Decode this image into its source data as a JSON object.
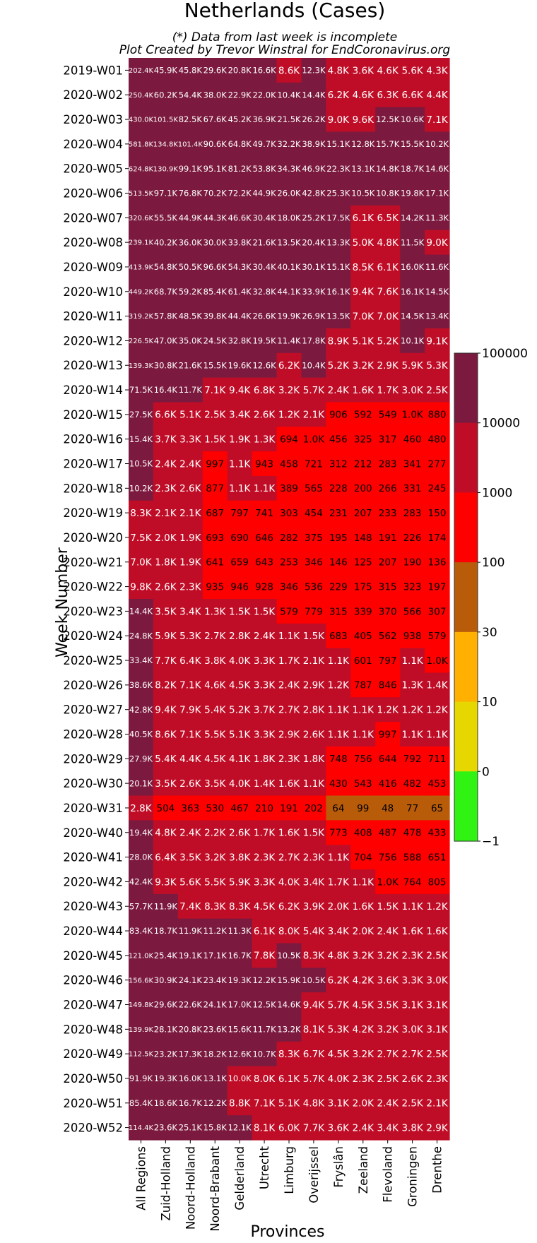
{
  "chart_data": {
    "type": "heatmap",
    "title": "Netherlands (Cases)",
    "subtitle_lines": [
      "(*) Data from last week is incomplete",
      "Plot Created by Trevor Winstral for EndCoronavirus.org"
    ],
    "xlabel": "Provinces",
    "ylabel": "Week Number",
    "columns": [
      "All Regions",
      "Zuid-Holland",
      "Noord-Holland",
      "Noord-Brabant",
      "Gelderland",
      "Utrecht",
      "Limburg",
      "Overijssel",
      "Fryslân",
      "Zeeland",
      "Flevoland",
      "Groningen",
      "Drenthe"
    ],
    "rows": [
      "2019-W01",
      "2020-W02",
      "2020-W03",
      "2020-W04",
      "2020-W05",
      "2020-W06",
      "2020-W07",
      "2020-W08",
      "2020-W09",
      "2020-W10",
      "2020-W11",
      "2020-W12",
      "2020-W13",
      "2020-W14",
      "2020-W15",
      "2020-W16",
      "2020-W17",
      "2020-W18",
      "2020-W19",
      "2020-W20",
      "2020-W21",
      "2020-W22",
      "2020-W23",
      "2020-W24",
      "2020-W25",
      "2020-W26",
      "2020-W27",
      "2020-W28",
      "2020-W29",
      "2020-W30",
      "2020-W31",
      "2020-W40",
      "2020-W41",
      "2020-W42",
      "2020-W43",
      "2020-W44",
      "2020-W45",
      "2020-W46",
      "2020-W47",
      "2020-W48",
      "2020-W49",
      "2020-W50",
      "2020-W51",
      "2020-W52"
    ],
    "cells": [
      [
        "202.4K",
        "45.9K",
        "45.8K",
        "29.6K",
        "20.8K",
        "16.6K",
        "8.6K",
        "12.3K",
        "4.8K",
        "3.6K",
        "4.6K",
        "5.6K",
        "4.3K"
      ],
      [
        "250.4K",
        "60.2K",
        "54.4K",
        "38.0K",
        "22.9K",
        "22.0K",
        "10.4K",
        "14.4K",
        "6.2K",
        "4.6K",
        "6.3K",
        "6.6K",
        "4.4K"
      ],
      [
        "430.0K",
        "101.5K",
        "82.5K",
        "67.6K",
        "45.2K",
        "36.9K",
        "21.5K",
        "26.2K",
        "9.0K",
        "9.6K",
        "12.5K",
        "10.6K",
        "7.1K"
      ],
      [
        "581.8K",
        "134.8K",
        "101.4K",
        "90.6K",
        "64.8K",
        "49.7K",
        "32.2K",
        "38.9K",
        "15.1K",
        "12.8K",
        "15.7K",
        "15.5K",
        "10.2K"
      ],
      [
        "624.8K",
        "130.9K",
        "99.1K",
        "95.1K",
        "81.2K",
        "53.8K",
        "34.3K",
        "46.9K",
        "22.3K",
        "13.1K",
        "14.8K",
        "18.7K",
        "14.6K"
      ],
      [
        "513.5K",
        "97.1K",
        "76.8K",
        "70.2K",
        "72.2K",
        "44.9K",
        "26.0K",
        "42.8K",
        "25.3K",
        "10.5K",
        "10.8K",
        "19.8K",
        "17.1K"
      ],
      [
        "320.6K",
        "55.5K",
        "44.9K",
        "44.3K",
        "46.6K",
        "30.4K",
        "18.0K",
        "25.2K",
        "17.5K",
        "6.1K",
        "6.5K",
        "14.2K",
        "11.3K"
      ],
      [
        "239.1K",
        "40.2K",
        "36.0K",
        "30.0K",
        "33.8K",
        "21.6K",
        "13.5K",
        "20.4K",
        "13.3K",
        "5.0K",
        "4.8K",
        "11.5K",
        "9.0K"
      ],
      [
        "413.9K",
        "54.8K",
        "50.5K",
        "96.6K",
        "54.3K",
        "30.4K",
        "40.1K",
        "30.1K",
        "15.1K",
        "8.5K",
        "6.1K",
        "16.0K",
        "11.6K"
      ],
      [
        "449.2K",
        "68.7K",
        "59.2K",
        "85.4K",
        "61.4K",
        "32.8K",
        "44.1K",
        "33.9K",
        "16.1K",
        "9.4K",
        "7.6K",
        "16.1K",
        "14.5K"
      ],
      [
        "319.2K",
        "57.8K",
        "48.5K",
        "39.8K",
        "44.4K",
        "26.6K",
        "19.9K",
        "26.9K",
        "13.5K",
        "7.0K",
        "7.0K",
        "14.5K",
        "13.4K"
      ],
      [
        "226.5K",
        "47.0K",
        "35.0K",
        "24.5K",
        "32.8K",
        "19.5K",
        "11.4K",
        "17.8K",
        "8.9K",
        "5.1K",
        "5.2K",
        "10.1K",
        "9.1K"
      ],
      [
        "139.3K",
        "30.8K",
        "21.6K",
        "15.5K",
        "19.6K",
        "12.6K",
        "6.2K",
        "10.4K",
        "5.2K",
        "3.2K",
        "2.9K",
        "5.9K",
        "5.3K"
      ],
      [
        "71.5K",
        "16.4K",
        "11.7K",
        "7.1K",
        "9.4K",
        "6.8K",
        "3.2K",
        "5.7K",
        "2.4K",
        "1.6K",
        "1.7K",
        "3.0K",
        "2.5K"
      ],
      [
        "27.5K",
        "6.6K",
        "5.1K",
        "2.5K",
        "3.4K",
        "2.6K",
        "1.2K",
        "2.1K",
        "906",
        "592",
        "549",
        "1.0K",
        "880"
      ],
      [
        "15.4K",
        "3.7K",
        "3.3K",
        "1.5K",
        "1.9K",
        "1.3K",
        "694",
        "1.0K",
        "456",
        "325",
        "317",
        "460",
        "480"
      ],
      [
        "10.5K",
        "2.4K",
        "2.4K",
        "997",
        "1.1K",
        "943",
        "458",
        "721",
        "312",
        "212",
        "283",
        "341",
        "277"
      ],
      [
        "10.2K",
        "2.3K",
        "2.6K",
        "877",
        "1.1K",
        "1.1K",
        "389",
        "565",
        "228",
        "200",
        "266",
        "331",
        "245"
      ],
      [
        "8.3K",
        "2.1K",
        "2.1K",
        "687",
        "797",
        "741",
        "303",
        "454",
        "231",
        "207",
        "233",
        "283",
        "150"
      ],
      [
        "7.5K",
        "2.0K",
        "1.9K",
        "693",
        "690",
        "646",
        "282",
        "375",
        "195",
        "148",
        "191",
        "226",
        "174"
      ],
      [
        "7.0K",
        "1.8K",
        "1.9K",
        "641",
        "659",
        "643",
        "253",
        "346",
        "146",
        "125",
        "207",
        "190",
        "136"
      ],
      [
        "9.8K",
        "2.6K",
        "2.3K",
        "935",
        "946",
        "928",
        "346",
        "536",
        "229",
        "175",
        "315",
        "323",
        "197"
      ],
      [
        "14.4K",
        "3.5K",
        "3.4K",
        "1.3K",
        "1.5K",
        "1.5K",
        "579",
        "779",
        "315",
        "339",
        "370",
        "566",
        "307"
      ],
      [
        "24.8K",
        "5.9K",
        "5.3K",
        "2.7K",
        "2.8K",
        "2.4K",
        "1.1K",
        "1.5K",
        "683",
        "405",
        "562",
        "938",
        "579"
      ],
      [
        "33.4K",
        "7.7K",
        "6.4K",
        "3.8K",
        "4.0K",
        "3.3K",
        "1.7K",
        "2.1K",
        "1.1K",
        "601",
        "797",
        "1.1K",
        "1.0K"
      ],
      [
        "38.6K",
        "8.2K",
        "7.1K",
        "4.6K",
        "4.5K",
        "3.3K",
        "2.4K",
        "2.9K",
        "1.2K",
        "787",
        "846",
        "1.3K",
        "1.4K"
      ],
      [
        "42.8K",
        "9.4K",
        "7.9K",
        "5.4K",
        "5.2K",
        "3.7K",
        "2.7K",
        "2.8K",
        "1.1K",
        "1.1K",
        "1.2K",
        "1.2K",
        "1.2K"
      ],
      [
        "40.5K",
        "8.6K",
        "7.1K",
        "5.5K",
        "5.1K",
        "3.3K",
        "2.9K",
        "2.6K",
        "1.1K",
        "1.1K",
        "997",
        "1.1K",
        "1.1K"
      ],
      [
        "27.9K",
        "5.4K",
        "4.4K",
        "4.5K",
        "4.1K",
        "1.8K",
        "2.3K",
        "1.8K",
        "748",
        "756",
        "644",
        "792",
        "711"
      ],
      [
        "20.1K",
        "3.5K",
        "2.6K",
        "3.5K",
        "4.0K",
        "1.4K",
        "1.6K",
        "1.1K",
        "430",
        "543",
        "416",
        "482",
        "453"
      ],
      [
        "2.8K",
        "504",
        "363",
        "530",
        "467",
        "210",
        "191",
        "202",
        "64",
        "99",
        "48",
        "77",
        "65"
      ],
      [
        "19.4K",
        "4.8K",
        "2.4K",
        "2.2K",
        "2.6K",
        "1.7K",
        "1.6K",
        "1.5K",
        "773",
        "408",
        "487",
        "478",
        "433"
      ],
      [
        "28.0K",
        "6.4K",
        "3.5K",
        "3.2K",
        "3.8K",
        "2.3K",
        "2.7K",
        "2.3K",
        "1.1K",
        "704",
        "756",
        "588",
        "651"
      ],
      [
        "42.4K",
        "9.3K",
        "5.6K",
        "5.5K",
        "5.9K",
        "3.3K",
        "4.0K",
        "3.4K",
        "1.7K",
        "1.1K",
        "1.0K",
        "764",
        "805"
      ],
      [
        "57.7K",
        "11.9K",
        "7.4K",
        "8.3K",
        "8.3K",
        "4.5K",
        "6.2K",
        "3.9K",
        "2.0K",
        "1.6K",
        "1.5K",
        "1.1K",
        "1.2K"
      ],
      [
        "83.4K",
        "18.7K",
        "11.9K",
        "11.2K",
        "11.3K",
        "6.1K",
        "8.0K",
        "5.4K",
        "3.4K",
        "2.0K",
        "2.4K",
        "1.6K",
        "1.6K"
      ],
      [
        "121.0K",
        "25.4K",
        "19.1K",
        "17.1K",
        "16.7K",
        "7.8K",
        "10.5K",
        "8.3K",
        "4.8K",
        "3.2K",
        "3.2K",
        "2.3K",
        "2.5K"
      ],
      [
        "156.6K",
        "30.9K",
        "24.1K",
        "23.4K",
        "19.3K",
        "12.2K",
        "15.9K",
        "10.5K",
        "6.2K",
        "4.2K",
        "3.6K",
        "3.3K",
        "3.0K"
      ],
      [
        "149.8K",
        "29.6K",
        "22.6K",
        "24.1K",
        "17.0K",
        "12.5K",
        "14.6K",
        "9.4K",
        "5.7K",
        "4.5K",
        "3.5K",
        "3.1K",
        "3.1K"
      ],
      [
        "139.9K",
        "28.1K",
        "20.8K",
        "23.6K",
        "15.6K",
        "11.7K",
        "13.2K",
        "8.1K",
        "5.3K",
        "4.2K",
        "3.2K",
        "3.0K",
        "3.1K"
      ],
      [
        "112.5K",
        "23.2K",
        "17.3K",
        "18.2K",
        "12.6K",
        "10.7K",
        "8.3K",
        "6.7K",
        "4.5K",
        "3.2K",
        "2.7K",
        "2.7K",
        "2.5K"
      ],
      [
        "91.9K",
        "19.3K",
        "16.0K",
        "13.1K",
        "10.0K",
        "8.0K",
        "6.1K",
        "5.7K",
        "4.0K",
        "2.3K",
        "2.5K",
        "2.6K",
        "2.3K"
      ],
      [
        "85.4K",
        "18.6K",
        "16.7K",
        "12.2K",
        "8.8K",
        "7.1K",
        "5.1K",
        "4.8K",
        "3.1K",
        "2.0K",
        "2.4K",
        "2.5K",
        "2.1K"
      ],
      [
        "114.4K",
        "23.6K",
        "25.1K",
        "15.8K",
        "12.1K",
        "8.1K",
        "6.0K",
        "7.7K",
        "3.6K",
        "2.4K",
        "3.4K",
        "3.8K",
        "2.9K"
      ]
    ],
    "colorbar": {
      "ticks": [
        "100000",
        "10000",
        "1000",
        "100",
        "30",
        "10",
        "0",
        "−1"
      ],
      "colors": [
        "#7b1a3e",
        "#c00d27",
        "#fe0000",
        "#b85c09",
        "#ffb000",
        "#e6d700",
        "#30f313"
      ]
    }
  }
}
